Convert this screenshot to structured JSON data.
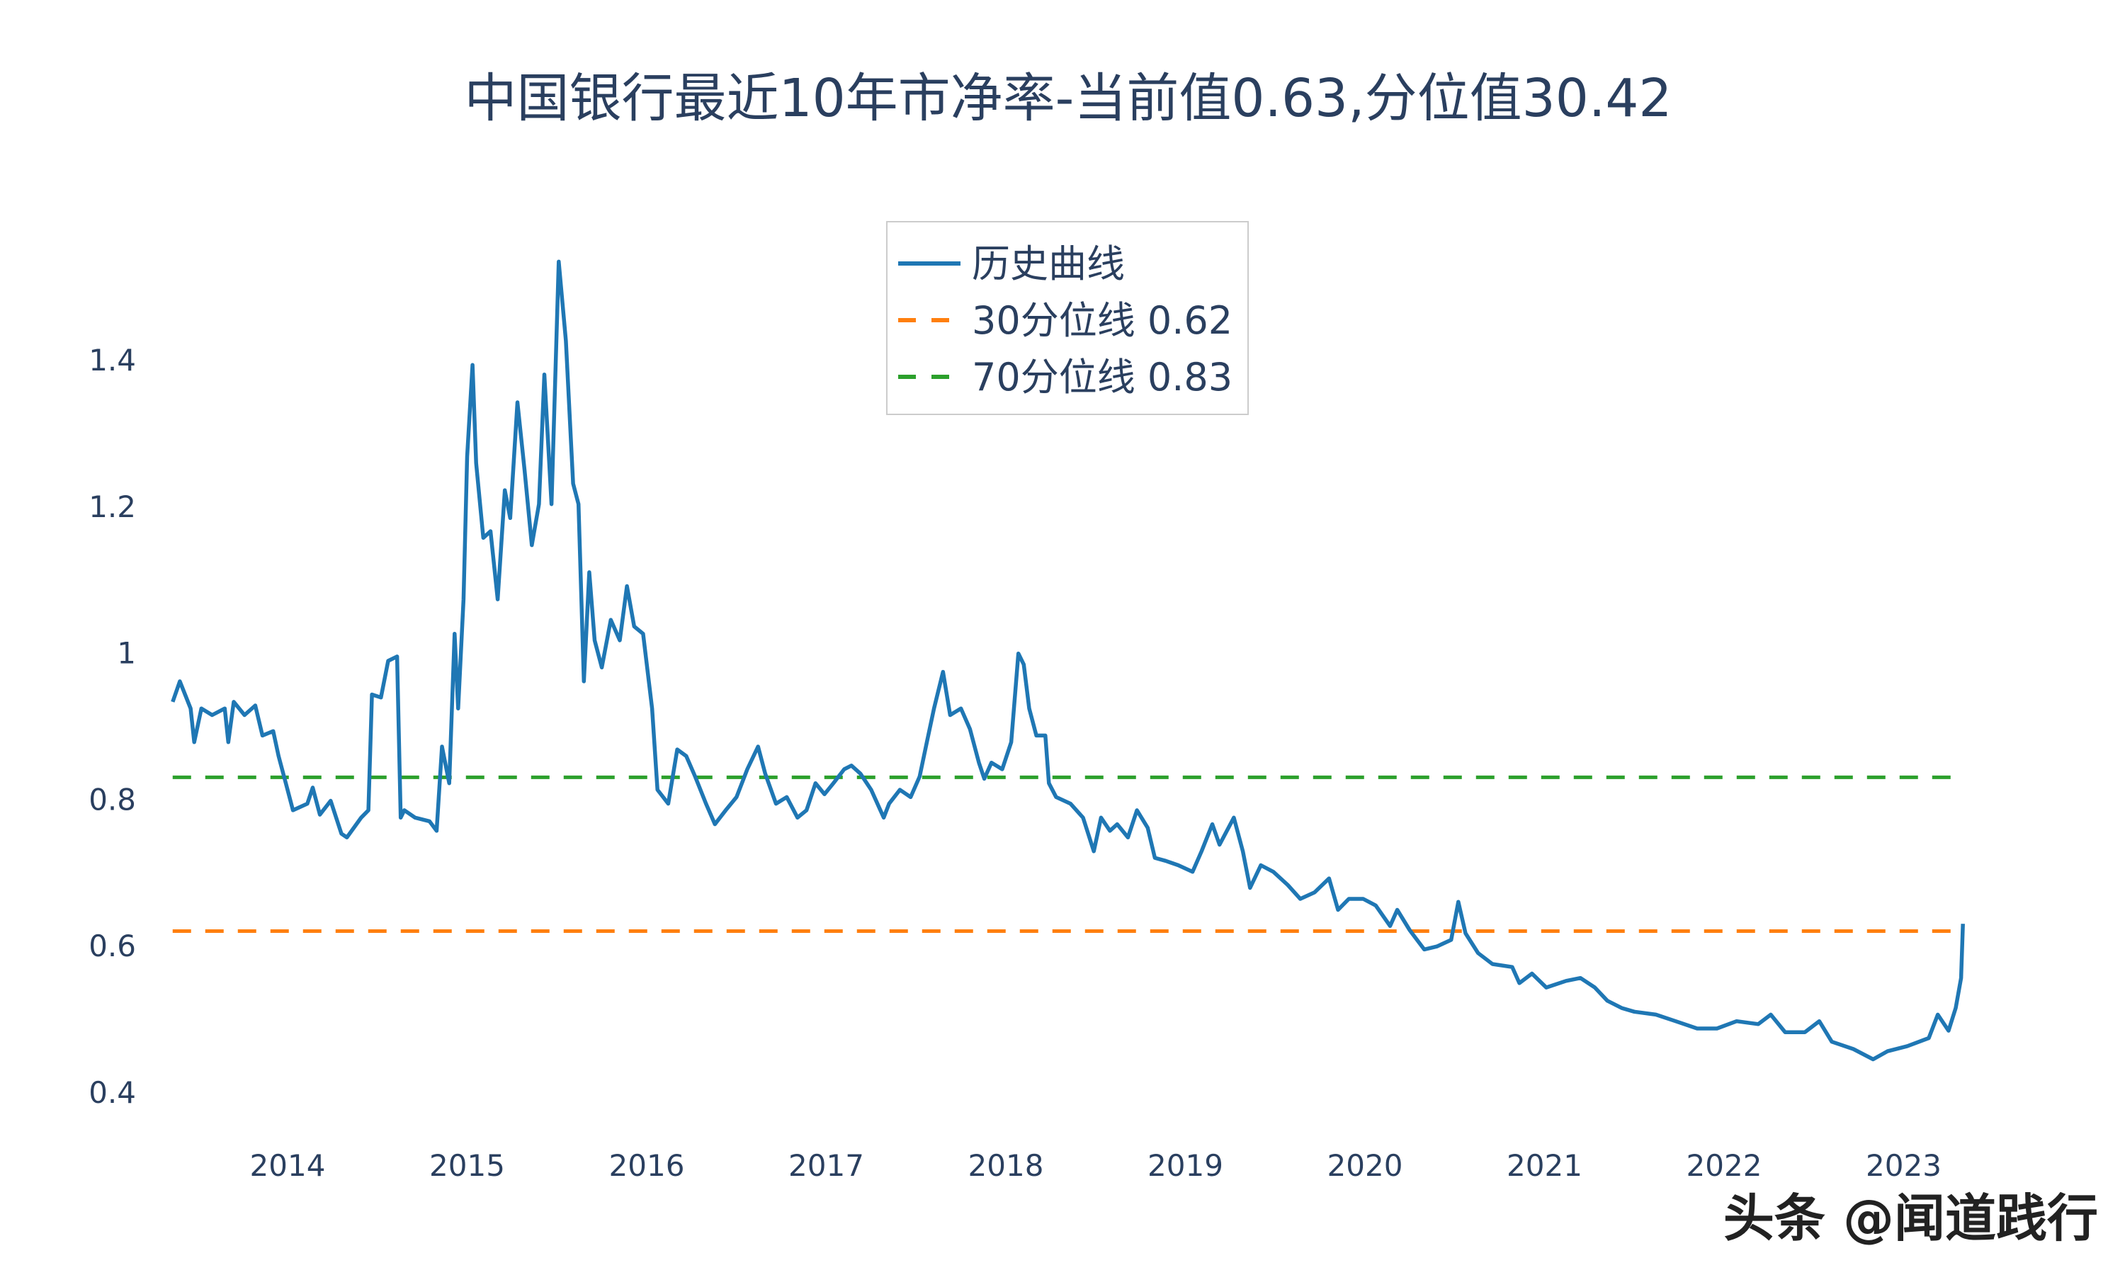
{
  "chart_data": {
    "type": "line",
    "title": "中国银行最近10年市净率-当前值0.63,分位值30.42",
    "xlabel": "",
    "ylabel": "",
    "x_ticks": [
      "2014",
      "2015",
      "2016",
      "2017",
      "2018",
      "2019",
      "2020",
      "2021",
      "2022",
      "2023"
    ],
    "y_ticks": [
      "0.4",
      "0.6",
      "0.8",
      "1",
      "1.2",
      "1.4"
    ],
    "y_tick_values": [
      0.4,
      0.6,
      0.8,
      1.0,
      1.2,
      1.4
    ],
    "grid": false,
    "legend_placement": "top-center",
    "series": [
      {
        "name": "历史曲线",
        "color": "#1f77b4",
        "style": "solid",
        "x": [
          2013.36,
          2013.4,
          2013.46,
          2013.48,
          2013.52,
          2013.58,
          2013.65,
          2013.67,
          2013.7,
          2013.76,
          2013.82,
          2013.86,
          2013.92,
          2013.95,
          2013.99,
          2014.03,
          2014.11,
          2014.14,
          2014.18,
          2014.24,
          2014.3,
          2014.33,
          2014.41,
          2014.45,
          2014.47,
          2014.52,
          2014.56,
          2014.61,
          2014.63,
          2014.65,
          2014.71,
          2014.79,
          2014.83,
          2014.86,
          2014.9,
          2014.93,
          2014.95,
          2014.98,
          2015.0,
          2015.03,
          2015.05,
          2015.09,
          2015.13,
          2015.17,
          2015.21,
          2015.24,
          2015.28,
          2015.32,
          2015.36,
          2015.4,
          2015.43,
          2015.47,
          2015.51,
          2015.55,
          2015.59,
          2015.62,
          2015.65,
          2015.68,
          2015.71,
          2015.75,
          2015.8,
          2015.85,
          2015.89,
          2015.93,
          2015.98,
          2016.03,
          2016.06,
          2016.12,
          2016.17,
          2016.22,
          2016.27,
          2016.33,
          2016.38,
          2016.44,
          2016.5,
          2016.56,
          2016.62,
          2016.66,
          2016.72,
          2016.78,
          2016.84,
          2016.89,
          2016.94,
          2016.99,
          2017.04,
          2017.1,
          2017.14,
          2017.19,
          2017.25,
          2017.32,
          2017.35,
          2017.41,
          2017.47,
          2017.52,
          2017.56,
          2017.6,
          2017.65,
          2017.69,
          2017.75,
          2017.8,
          2017.85,
          2017.88,
          2017.92,
          2017.98,
          2018.03,
          2018.07,
          2018.1,
          2018.13,
          2018.17,
          2018.22,
          2018.24,
          2018.28,
          2018.36,
          2018.43,
          2018.49,
          2018.53,
          2018.58,
          2018.62,
          2018.68,
          2018.73,
          2018.79,
          2018.83,
          2018.89,
          2018.96,
          2019.04,
          2019.09,
          2019.15,
          2019.19,
          2019.27,
          2019.32,
          2019.36,
          2019.42,
          2019.49,
          2019.57,
          2019.64,
          2019.72,
          2019.8,
          2019.85,
          2019.91,
          2019.99,
          2020.06,
          2020.14,
          2020.18,
          2020.25,
          2020.33,
          2020.4,
          2020.48,
          2020.52,
          2020.56,
          2020.63,
          2020.71,
          2020.82,
          2020.86,
          2020.93,
          2021.01,
          2021.12,
          2021.2,
          2021.28,
          2021.35,
          2021.43,
          2021.5,
          2021.62,
          2021.73,
          2021.85,
          2021.96,
          2022.07,
          2022.19,
          2022.26,
          2022.34,
          2022.45,
          2022.53,
          2022.6,
          2022.72,
          2022.83,
          2022.91,
          2023.02,
          2023.14,
          2023.19,
          2023.25,
          2023.29,
          2023.32,
          2023.33
        ],
        "values": [
          0.933,
          0.961,
          0.924,
          0.878,
          0.924,
          0.915,
          0.924,
          0.878,
          0.933,
          0.915,
          0.928,
          0.887,
          0.893,
          0.859,
          0.822,
          0.785,
          0.794,
          0.816,
          0.779,
          0.798,
          0.753,
          0.748,
          0.775,
          0.785,
          0.943,
          0.939,
          0.989,
          0.995,
          0.775,
          0.785,
          0.775,
          0.77,
          0.757,
          0.872,
          0.822,
          1.026,
          0.924,
          1.073,
          1.268,
          1.393,
          1.259,
          1.157,
          1.166,
          1.073,
          1.222,
          1.184,
          1.342,
          1.249,
          1.147,
          1.203,
          1.38,
          1.203,
          1.534,
          1.426,
          1.231,
          1.203,
          0.961,
          1.11,
          1.017,
          0.98,
          1.045,
          1.017,
          1.091,
          1.036,
          1.026,
          0.924,
          0.813,
          0.794,
          0.868,
          0.859,
          0.831,
          0.794,
          0.766,
          0.785,
          0.803,
          0.841,
          0.872,
          0.835,
          0.794,
          0.803,
          0.775,
          0.785,
          0.822,
          0.807,
          0.822,
          0.841,
          0.846,
          0.835,
          0.813,
          0.775,
          0.794,
          0.813,
          0.803,
          0.831,
          0.878,
          0.924,
          0.974,
          0.915,
          0.924,
          0.896,
          0.85,
          0.828,
          0.85,
          0.841,
          0.878,
          0.999,
          0.984,
          0.924,
          0.887,
          0.887,
          0.822,
          0.803,
          0.794,
          0.775,
          0.729,
          0.775,
          0.757,
          0.766,
          0.748,
          0.785,
          0.761,
          0.72,
          0.716,
          0.71,
          0.701,
          0.729,
          0.766,
          0.738,
          0.775,
          0.729,
          0.679,
          0.71,
          0.701,
          0.683,
          0.664,
          0.673,
          0.692,
          0.649,
          0.664,
          0.664,
          0.655,
          0.627,
          0.649,
          0.621,
          0.595,
          0.599,
          0.608,
          0.66,
          0.617,
          0.59,
          0.575,
          0.571,
          0.549,
          0.562,
          0.543,
          0.552,
          0.556,
          0.543,
          0.525,
          0.515,
          0.51,
          0.506,
          0.497,
          0.487,
          0.487,
          0.497,
          0.493,
          0.506,
          0.482,
          0.482,
          0.497,
          0.469,
          0.459,
          0.445,
          0.456,
          0.463,
          0.474,
          0.506,
          0.484,
          0.515,
          0.556,
          0.63
        ]
      },
      {
        "name": "30分位线 0.62",
        "color": "#ff7f0e",
        "style": "dash",
        "value": 0.62
      },
      {
        "name": "70分位线 0.83",
        "color": "#2ca02c",
        "style": "dash",
        "value": 0.83
      }
    ]
  },
  "watermark": "头条 @闻道践行"
}
